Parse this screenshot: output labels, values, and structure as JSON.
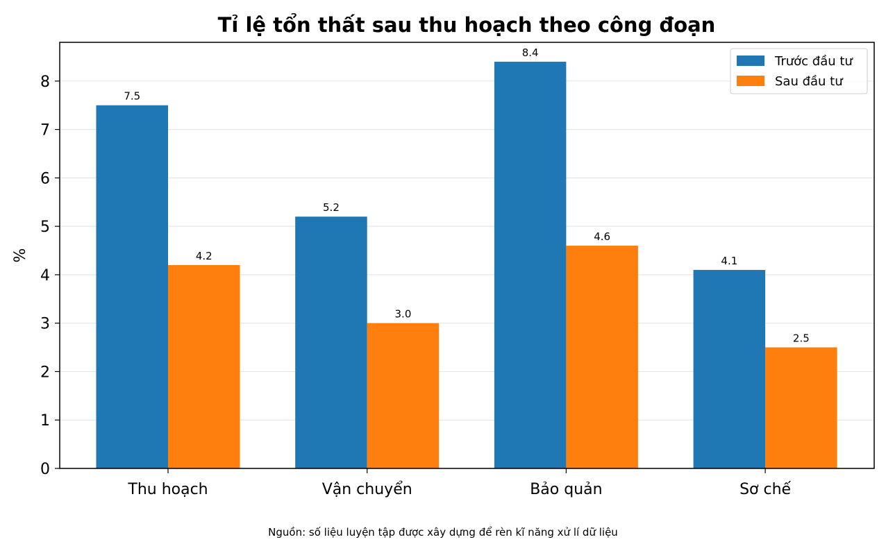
{
  "chart_data": {
    "type": "bar",
    "title": "Tỉ lệ tổn thất sau thu hoạch theo công đoạn",
    "xlabel": "",
    "ylabel": "%",
    "categories": [
      "Thu hoạch",
      "Vận chuyển",
      "Bảo quản",
      "Sơ chế"
    ],
    "series": [
      {
        "name": "Trước đầu tư",
        "color": "#1f77b4",
        "values": [
          7.5,
          5.2,
          8.4,
          4.1
        ],
        "labels": [
          "7.5",
          "5.2",
          "8.4",
          "4.1"
        ]
      },
      {
        "name": "Sau đầu tư",
        "color": "#ff7f0e",
        "values": [
          4.2,
          3.0,
          4.6,
          2.5
        ],
        "labels": [
          "4.2",
          "3.0",
          "4.6",
          "2.5"
        ]
      }
    ],
    "ylim": [
      0,
      8.8
    ],
    "yticks": [
      "0",
      "1",
      "2",
      "3",
      "4",
      "5",
      "6",
      "7",
      "8"
    ],
    "grid": "horizontal",
    "legend_position": "top-right",
    "source_note": "Nguồn: số liệu luyện tập được xây dựng để rèn kĩ năng xử lí dữ liệu"
  }
}
